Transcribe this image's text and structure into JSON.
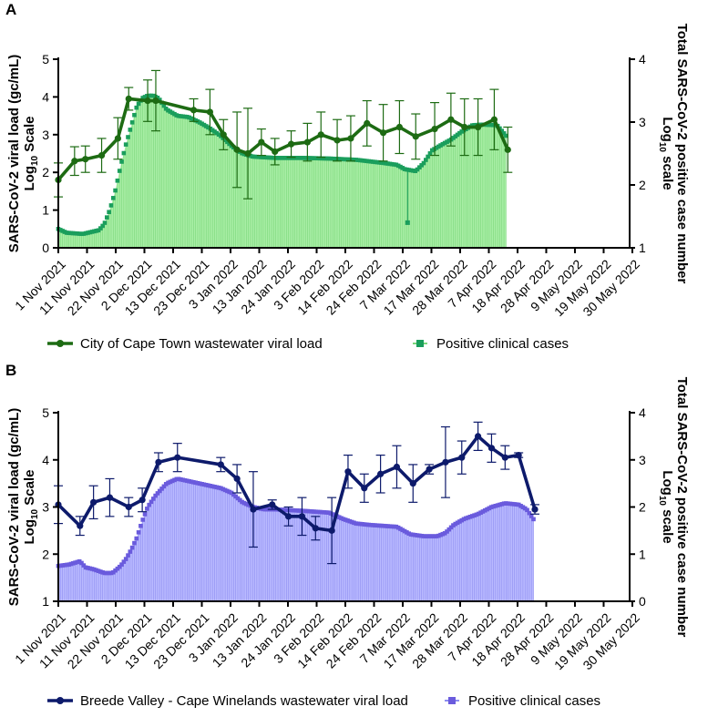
{
  "x_tick_labels": [
    "1 Nov 2021",
    "11 Nov 2021",
    "22 Nov 2021",
    "2 Dec 2021",
    "13 Dec 2021",
    "23 Dec 2021",
    "3 Jan 2022",
    "13 Jan 2022",
    "24 Jan 2022",
    "3 Feb 2022",
    "14 Feb 2022",
    "24 Feb 2022",
    "7 Mar 2022",
    "17 Mar 2022",
    "28 Mar 2022",
    "7 Apr 2022",
    "18 Apr 2022",
    "28 Apr 2022",
    "9 May 2022",
    "19 May 2022",
    "30 May 2022"
  ],
  "chart_data": [
    {
      "panel": "A",
      "type": "line",
      "ylabel": "SARS-CoV-2 viral load (gc/mL) Log10 Scale",
      "ylabel_parts": {
        "main": "SARS-CoV-2 viral load (gc/mL)",
        "log": "Log",
        "sub": "10",
        "scale": " Scale"
      },
      "y2label": "Total SARS-CoV-2 positive case number Log10 scale",
      "y2label_parts": {
        "main": "Total SARS-CoV-2 positive case number",
        "log": "Log",
        "sub": "10",
        "scale": " scale"
      },
      "ylim": [
        0,
        5
      ],
      "y_ticks": [
        "0",
        "1",
        "2",
        "3",
        "4",
        "5"
      ],
      "y2lim": [
        1,
        4
      ],
      "y2_ticks": [
        "1",
        "2",
        "3",
        "4"
      ],
      "wastewater": {
        "name": "City of Cape Town wastewater viral load",
        "color": "#1d6b13",
        "points": [
          {
            "day": 0,
            "y": 1.8,
            "err": 0.45
          },
          {
            "day": 6,
            "y": 2.3,
            "err": 0.38
          },
          {
            "day": 10,
            "y": 2.35,
            "err": 0.35
          },
          {
            "day": 16,
            "y": 2.45,
            "err": 0.45
          },
          {
            "day": 22,
            "y": 2.9,
            "err": 0.55
          },
          {
            "day": 26,
            "y": 3.95,
            "err": 0.3
          },
          {
            "day": 33,
            "y": 3.9,
            "err": 0.55
          },
          {
            "day": 36,
            "y": 3.9,
            "err": 0.8
          },
          {
            "day": 50,
            "y": 3.65,
            "err": 0.3
          },
          {
            "day": 56,
            "y": 3.6,
            "err": 0.6
          },
          {
            "day": 61,
            "y": 3.0,
            "err": 0.4
          },
          {
            "day": 66,
            "y": 2.6,
            "err": 1.0
          },
          {
            "day": 70,
            "y": 2.5,
            "err": 1.2
          },
          {
            "day": 75,
            "y": 2.8,
            "err": 0.35
          },
          {
            "day": 80,
            "y": 2.55,
            "err": 0.35
          },
          {
            "day": 86,
            "y": 2.75,
            "err": 0.35
          },
          {
            "day": 92,
            "y": 2.8,
            "err": 0.5
          },
          {
            "day": 97,
            "y": 3.0,
            "err": 0.6
          },
          {
            "day": 103,
            "y": 2.85,
            "err": 0.55
          },
          {
            "day": 108,
            "y": 2.9,
            "err": 0.6
          },
          {
            "day": 114,
            "y": 3.3,
            "err": 0.6
          },
          {
            "day": 120,
            "y": 3.05,
            "err": 0.75
          },
          {
            "day": 126,
            "y": 3.2,
            "err": 0.7
          },
          {
            "day": 132,
            "y": 2.95,
            "err": 0.6
          },
          {
            "day": 139,
            "y": 3.15,
            "err": 0.7
          },
          {
            "day": 145,
            "y": 3.4,
            "err": 0.7
          },
          {
            "day": 150,
            "y": 3.2,
            "err": 0.75
          },
          {
            "day": 155,
            "y": 3.2,
            "err": 0.75
          },
          {
            "day": 161,
            "y": 3.4,
            "err": 0.8
          },
          {
            "day": 166,
            "y": 2.6,
            "err": 0.6
          }
        ]
      },
      "cases": {
        "name": "Positive clinical cases",
        "color": "#a8eea5",
        "line_color": "#7ad67a",
        "marker_color": "#1a9e5c",
        "first_day": 0,
        "last_day": 166,
        "outlier": {
          "day": 129,
          "y2": 1.4
        },
        "knots": [
          [
            0,
            1.3
          ],
          [
            3,
            1.24
          ],
          [
            6,
            1.23
          ],
          [
            9,
            1.22
          ],
          [
            12,
            1.25
          ],
          [
            15,
            1.28
          ],
          [
            17,
            1.38
          ],
          [
            19,
            1.6
          ],
          [
            21,
            1.9
          ],
          [
            23,
            2.3
          ],
          [
            25,
            2.65
          ],
          [
            27,
            2.95
          ],
          [
            29,
            3.25
          ],
          [
            31,
            3.38
          ],
          [
            33,
            3.42
          ],
          [
            35,
            3.42
          ],
          [
            37,
            3.38
          ],
          [
            40,
            3.2
          ],
          [
            44,
            3.1
          ],
          [
            48,
            3.08
          ],
          [
            52,
            3.0
          ],
          [
            56,
            2.9
          ],
          [
            60,
            2.78
          ],
          [
            64,
            2.62
          ],
          [
            68,
            2.5
          ],
          [
            72,
            2.45
          ],
          [
            80,
            2.43
          ],
          [
            90,
            2.43
          ],
          [
            100,
            2.42
          ],
          [
            110,
            2.4
          ],
          [
            120,
            2.35
          ],
          [
            125,
            2.32
          ],
          [
            128,
            2.25
          ],
          [
            132,
            2.22
          ],
          [
            135,
            2.35
          ],
          [
            138,
            2.55
          ],
          [
            142,
            2.65
          ],
          [
            145,
            2.72
          ],
          [
            149,
            2.85
          ],
          [
            153,
            2.95
          ],
          [
            157,
            2.96
          ],
          [
            162,
            2.95
          ],
          [
            164,
            2.85
          ],
          [
            166,
            2.75
          ]
        ]
      }
    },
    {
      "panel": "B",
      "type": "line",
      "ylabel": "SARS-CoV-2 viral load (gc/mL) Log10 Scale",
      "ylabel_parts": {
        "main": "SARS-CoV-2 viral load (gc/mL)",
        "log": "Log",
        "sub": "10",
        "scale": " Scale"
      },
      "y2label": "Total SARS-CoV-2 positive case number Log10 scale",
      "y2label_parts": {
        "main": "Total SARS-CoV-2 positive case number",
        "log": "Log",
        "sub": "10",
        "scale": " scale"
      },
      "ylim": [
        1,
        5
      ],
      "y_ticks": [
        "1",
        "2",
        "3",
        "4",
        "5"
      ],
      "y2lim": [
        0,
        4
      ],
      "y2_ticks": [
        "0",
        "1",
        "2",
        "3",
        "4"
      ],
      "wastewater": {
        "name": "Breede Valley - Cape Winelands wastewater viral load",
        "color": "#0d1a6b",
        "points": [
          {
            "day": 0,
            "y": 3.05,
            "err": 0.4
          },
          {
            "day": 8,
            "y": 2.6,
            "err": 0.2
          },
          {
            "day": 13,
            "y": 3.1,
            "err": 0.35
          },
          {
            "day": 19,
            "y": 3.2,
            "err": 0.4
          },
          {
            "day": 26,
            "y": 3.0,
            "err": 0.2
          },
          {
            "day": 31,
            "y": 3.15,
            "err": 0.25
          },
          {
            "day": 37,
            "y": 3.95,
            "err": 0.2
          },
          {
            "day": 44,
            "y": 4.05,
            "err": 0.3
          },
          {
            "day": 60,
            "y": 3.9,
            "err": 0.15
          },
          {
            "day": 66,
            "y": 3.6,
            "err": 0.3
          },
          {
            "day": 72,
            "y": 2.95,
            "err": 0.8
          },
          {
            "day": 79,
            "y": 3.05,
            "err": 0.1
          },
          {
            "day": 85,
            "y": 2.8,
            "err": 0.2
          },
          {
            "day": 90,
            "y": 2.8,
            "err": 0.4
          },
          {
            "day": 95,
            "y": 2.55,
            "err": 0.25
          },
          {
            "day": 101,
            "y": 2.5,
            "err": 0.7
          },
          {
            "day": 107,
            "y": 3.75,
            "err": 0.35
          },
          {
            "day": 113,
            "y": 3.4,
            "err": 0.3
          },
          {
            "day": 119,
            "y": 3.7,
            "err": 0.4
          },
          {
            "day": 125,
            "y": 3.85,
            "err": 0.45
          },
          {
            "day": 131,
            "y": 3.5,
            "err": 0.4
          },
          {
            "day": 137,
            "y": 3.8,
            "err": 0.1
          },
          {
            "day": 143,
            "y": 3.95,
            "err": 0.75
          },
          {
            "day": 149,
            "y": 4.05,
            "err": 0.35
          },
          {
            "day": 155,
            "y": 4.5,
            "err": 0.3
          },
          {
            "day": 160,
            "y": 4.25,
            "err": 0.3
          },
          {
            "day": 165,
            "y": 4.05,
            "err": 0.25
          },
          {
            "day": 170,
            "y": 4.1,
            "err": 0.05
          },
          {
            "day": 176,
            "y": 2.95,
            "err": 0.1
          }
        ]
      },
      "cases": {
        "name": "Positive clinical cases",
        "color": "#b9b9ff",
        "line_color": "#8e8ef0",
        "marker_color": "#6a5bdd",
        "first_day": 0,
        "last_day": 176,
        "knots": [
          [
            0,
            0.75
          ],
          [
            4,
            0.78
          ],
          [
            8,
            0.85
          ],
          [
            10,
            0.72
          ],
          [
            13,
            0.68
          ],
          [
            17,
            0.6
          ],
          [
            20,
            0.6
          ],
          [
            23,
            0.75
          ],
          [
            25,
            0.9
          ],
          [
            27,
            1.1
          ],
          [
            29,
            1.35
          ],
          [
            31,
            1.7
          ],
          [
            33,
            2.0
          ],
          [
            36,
            2.25
          ],
          [
            40,
            2.5
          ],
          [
            44,
            2.6
          ],
          [
            48,
            2.55
          ],
          [
            52,
            2.5
          ],
          [
            56,
            2.45
          ],
          [
            60,
            2.4
          ],
          [
            64,
            2.3
          ],
          [
            68,
            2.1
          ],
          [
            72,
            2.0
          ],
          [
            76,
            1.95
          ],
          [
            80,
            1.95
          ],
          [
            90,
            1.92
          ],
          [
            100,
            1.88
          ],
          [
            105,
            1.75
          ],
          [
            110,
            1.65
          ],
          [
            115,
            1.62
          ],
          [
            125,
            1.58
          ],
          [
            130,
            1.42
          ],
          [
            135,
            1.38
          ],
          [
            140,
            1.38
          ],
          [
            143,
            1.45
          ],
          [
            146,
            1.62
          ],
          [
            150,
            1.75
          ],
          [
            155,
            1.85
          ],
          [
            160,
            2.0
          ],
          [
            165,
            2.08
          ],
          [
            170,
            2.05
          ],
          [
            173,
            1.95
          ],
          [
            176,
            1.7
          ]
        ]
      }
    }
  ]
}
